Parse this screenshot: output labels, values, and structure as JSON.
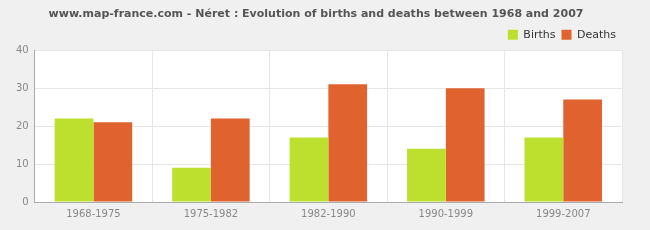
{
  "chart_data": {
    "type": "bar",
    "title": "www.map-france.com - Néret : Evolution of births and deaths between 1968 and 2007",
    "categories": [
      "1968-1975",
      "1975-1982",
      "1982-1990",
      "1990-1999",
      "1999-2007"
    ],
    "series": [
      {
        "name": "Births",
        "color": "#bde02e",
        "values": [
          22,
          9,
          17,
          14,
          17
        ]
      },
      {
        "name": "Deaths",
        "color": "#e0632f",
        "values": [
          21,
          22,
          31,
          30,
          27
        ]
      }
    ],
    "ylim": [
      0,
      40
    ],
    "yticks": [
      0,
      10,
      20,
      30,
      40
    ],
    "grid": true,
    "legend": "upper right"
  }
}
